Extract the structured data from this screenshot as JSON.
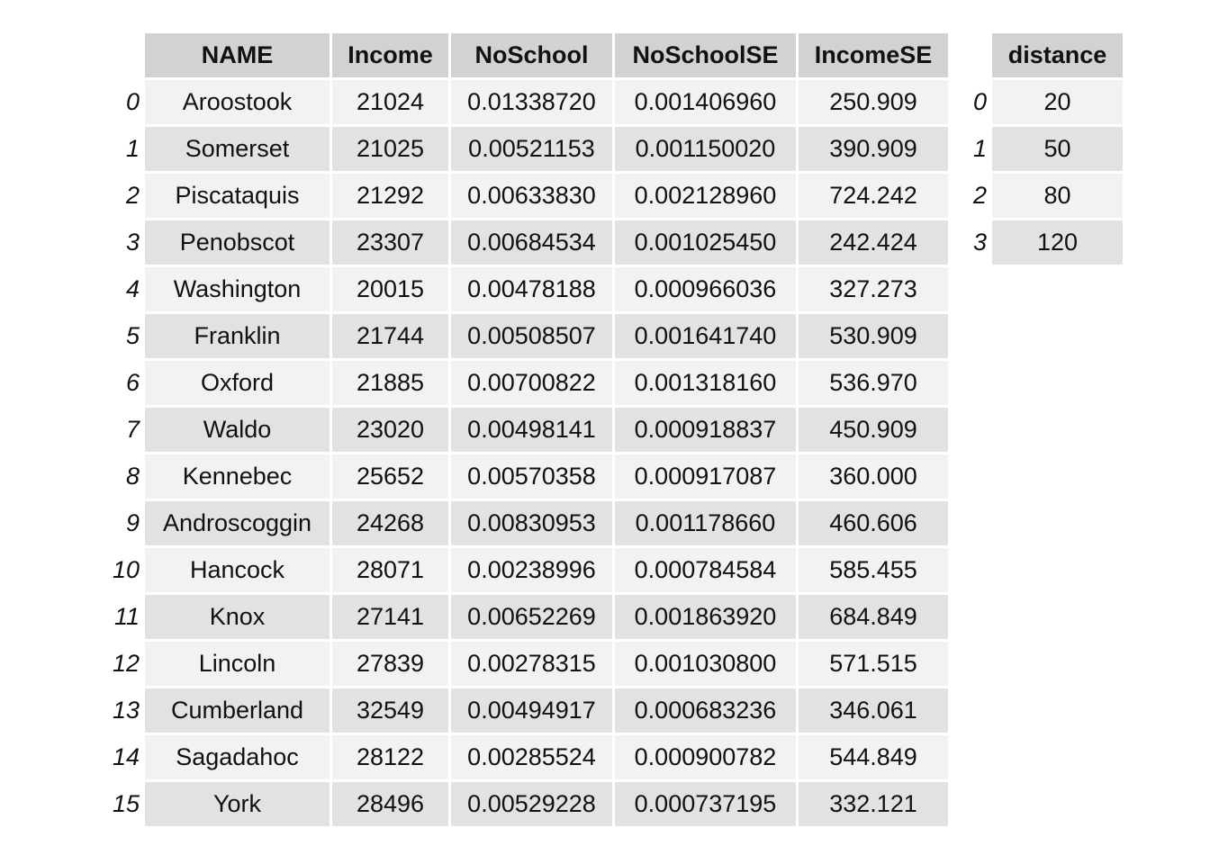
{
  "main_table": {
    "columns": [
      "NAME",
      "Income",
      "NoSchool",
      "NoSchoolSE",
      "IncomeSE"
    ],
    "rows": [
      {
        "index": "0",
        "cells": [
          "Aroostook",
          "21024",
          "0.01338720",
          "0.001406960",
          "250.909"
        ]
      },
      {
        "index": "1",
        "cells": [
          "Somerset",
          "21025",
          "0.00521153",
          "0.001150020",
          "390.909"
        ]
      },
      {
        "index": "2",
        "cells": [
          "Piscataquis",
          "21292",
          "0.00633830",
          "0.002128960",
          "724.242"
        ]
      },
      {
        "index": "3",
        "cells": [
          "Penobscot",
          "23307",
          "0.00684534",
          "0.001025450",
          "242.424"
        ]
      },
      {
        "index": "4",
        "cells": [
          "Washington",
          "20015",
          "0.00478188",
          "0.000966036",
          "327.273"
        ]
      },
      {
        "index": "5",
        "cells": [
          "Franklin",
          "21744",
          "0.00508507",
          "0.001641740",
          "530.909"
        ]
      },
      {
        "index": "6",
        "cells": [
          "Oxford",
          "21885",
          "0.00700822",
          "0.001318160",
          "536.970"
        ]
      },
      {
        "index": "7",
        "cells": [
          "Waldo",
          "23020",
          "0.00498141",
          "0.000918837",
          "450.909"
        ]
      },
      {
        "index": "8",
        "cells": [
          "Kennebec",
          "25652",
          "0.00570358",
          "0.000917087",
          "360.000"
        ]
      },
      {
        "index": "9",
        "cells": [
          "Androscoggin",
          "24268",
          "0.00830953",
          "0.001178660",
          "460.606"
        ]
      },
      {
        "index": "10",
        "cells": [
          "Hancock",
          "28071",
          "0.00238996",
          "0.000784584",
          "585.455"
        ]
      },
      {
        "index": "11",
        "cells": [
          "Knox",
          "27141",
          "0.00652269",
          "0.001863920",
          "684.849"
        ]
      },
      {
        "index": "12",
        "cells": [
          "Lincoln",
          "27839",
          "0.00278315",
          "0.001030800",
          "571.515"
        ]
      },
      {
        "index": "13",
        "cells": [
          "Cumberland",
          "32549",
          "0.00494917",
          "0.000683236",
          "346.061"
        ]
      },
      {
        "index": "14",
        "cells": [
          "Sagadahoc",
          "28122",
          "0.00285524",
          "0.000900782",
          "544.849"
        ]
      },
      {
        "index": "15",
        "cells": [
          "York",
          "28496",
          "0.00529228",
          "0.000737195",
          "332.121"
        ]
      }
    ]
  },
  "distance_table": {
    "columns": [
      "distance"
    ],
    "rows": [
      {
        "index": "0",
        "cells": [
          "20"
        ]
      },
      {
        "index": "1",
        "cells": [
          "50"
        ]
      },
      {
        "index": "2",
        "cells": [
          "80"
        ]
      },
      {
        "index": "3",
        "cells": [
          "120"
        ]
      }
    ]
  },
  "colors": {
    "header_bg": "#d2d2d2",
    "row_odd_bg": "#f2f2f2",
    "row_even_bg": "#e2e2e2"
  }
}
